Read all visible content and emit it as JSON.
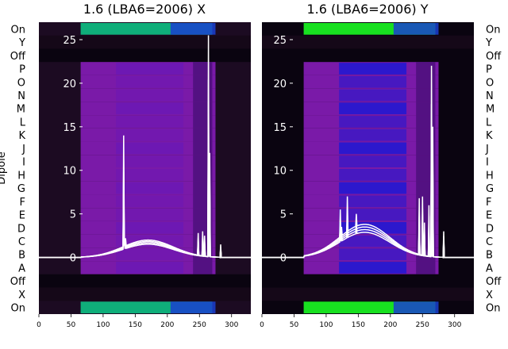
{
  "chart_data": [
    {
      "type": "heatmap",
      "title": "1.6 (LBA6=2006) X",
      "ylabel": "Dipole",
      "xlabel": "",
      "xlim": [
        0,
        330
      ],
      "xticks": [
        0,
        50,
        100,
        150,
        200,
        250,
        300
      ],
      "rows_top_to_bottom": [
        "On",
        "Y",
        "Off",
        "P",
        "O",
        "N",
        "M",
        "L",
        "K",
        "J",
        "I",
        "H",
        "G",
        "F",
        "E",
        "D",
        "C",
        "B",
        "A",
        "Off",
        "X",
        "On"
      ],
      "overlay_line": {
        "ylim": [
          -6.5,
          27
        ],
        "yticks": [
          0,
          5,
          10,
          15,
          20,
          25
        ],
        "baseline_until": 65,
        "hump_center": 170,
        "hump_peak": 2.0,
        "spikes": [
          {
            "x": 132,
            "y": 14
          },
          {
            "x": 133,
            "y": 2.5
          },
          {
            "x": 135,
            "y": 2.2
          },
          {
            "x": 248,
            "y": 2.8
          },
          {
            "x": 255,
            "y": 3
          },
          {
            "x": 258,
            "y": 2.5
          },
          {
            "x": 264,
            "y": 25.5
          },
          {
            "x": 266,
            "y": 12
          },
          {
            "x": 283,
            "y": 1.5
          }
        ],
        "tail_end": 282
      },
      "colors": {
        "background": "#1c0b22",
        "band": "#7a1aa8",
        "band_center": "#6c18b4",
        "on_bright": "#0fae7a",
        "on_blue": "#1a3fd0"
      }
    },
    {
      "type": "heatmap",
      "title": "1.6 (LBA6=2006) Y",
      "ylabel": "",
      "xlabel": "",
      "xlim": [
        0,
        330
      ],
      "xticks": [
        0,
        50,
        100,
        150,
        200,
        250,
        300
      ],
      "rows_top_to_bottom": [
        "On",
        "Y",
        "Off",
        "P",
        "O",
        "N",
        "M",
        "L",
        "K",
        "J",
        "I",
        "H",
        "G",
        "F",
        "E",
        "D",
        "C",
        "B",
        "A",
        "Off",
        "X",
        "On"
      ],
      "overlay_line": {
        "ylim": [
          -6.5,
          27
        ],
        "yticks": [
          0,
          5,
          10,
          15,
          20,
          25
        ],
        "baseline_until": 65,
        "hump_center": 160,
        "hump_peak": 3.8,
        "spikes": [
          {
            "x": 122,
            "y": 5.5
          },
          {
            "x": 124,
            "y": 3.5
          },
          {
            "x": 133,
            "y": 7
          },
          {
            "x": 147,
            "y": 5
          },
          {
            "x": 245,
            "y": 6.8
          },
          {
            "x": 250,
            "y": 7
          },
          {
            "x": 253,
            "y": 4
          },
          {
            "x": 260,
            "y": 6
          },
          {
            "x": 264,
            "y": 22
          },
          {
            "x": 266,
            "y": 15
          },
          {
            "x": 283,
            "y": 3
          }
        ],
        "tail_end": 282
      },
      "colors": {
        "background": "#0a0410",
        "band": "#7a1aa8",
        "band_center": "#2418d0",
        "on_bright": "#18e020",
        "on_blue": "#1a3fd0"
      }
    }
  ]
}
